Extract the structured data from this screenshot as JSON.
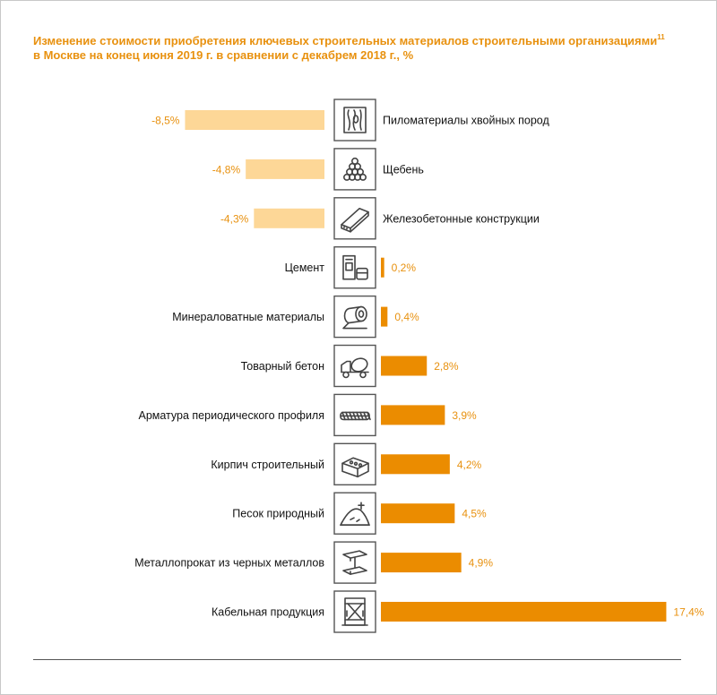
{
  "colors": {
    "negative_bar": "#fdd797",
    "positive_bar": "#eb8c00",
    "value_label": "#e8910f",
    "title": "#e8910f",
    "icon_stroke": "#444444"
  },
  "header": {
    "title_line1": "Изменение стоимости приобретения ключевых строительных материалов строительными организациями",
    "footnote_ref": "11",
    "title_line2": "в Москве на конец июня 2019 г. в сравнении с декабрем 2018 г., %"
  },
  "chart_data": {
    "type": "bar",
    "orientation": "horizontal",
    "title": "Изменение стоимости приобретения ключевых строительных материалов строительными организациями в Москве на конец июня 2019 г. в сравнении с декабрем 2018 г., %",
    "xlabel": "",
    "ylabel": "",
    "grid": false,
    "categories": [
      "Пиломатериалы хвойных пород",
      "Щебень",
      "Железобетонные конструкции",
      "Цемент",
      "Минераловатные материалы",
      "Товарный бетон",
      "Арматура периодического профиля",
      "Кирпич строительный",
      "Песок природный",
      "Металлопрокат из черных металлов",
      "Кабельная продукция"
    ],
    "values": [
      -8.5,
      -4.8,
      -4.3,
      0.2,
      0.4,
      2.8,
      3.9,
      4.2,
      4.5,
      4.9,
      17.4
    ],
    "value_labels": [
      "-8,5%",
      "-4,8%",
      "-4,3%",
      "0,2%",
      "0,4%",
      "2,8%",
      "3,9%",
      "4,2%",
      "4,5%",
      "4,9%",
      "17,4%"
    ],
    "icons": [
      "lumber-icon",
      "crushed-stone-icon",
      "concrete-slab-icon",
      "cement-icon",
      "mineral-wool-roll-icon",
      "concrete-mixer-icon",
      "rebar-icon",
      "brick-icon",
      "sand-pile-icon",
      "steel-beam-icon",
      "cable-drum-icon"
    ]
  }
}
